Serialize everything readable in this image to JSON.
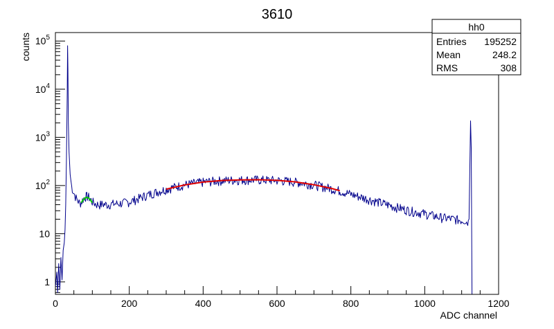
{
  "chart_data": {
    "type": "line",
    "title": "3610",
    "xlabel": "ADC channel",
    "ylabel": "counts",
    "xlim": [
      0,
      1200
    ],
    "ylim": [
      0.55,
      150000
    ],
    "y_scale": "log",
    "grid": false,
    "x_ticks": [
      {
        "value": 0,
        "label": "0"
      },
      {
        "value": 200,
        "label": "200"
      },
      {
        "value": 400,
        "label": "400"
      },
      {
        "value": 600,
        "label": "600"
      },
      {
        "value": 800,
        "label": "800"
      },
      {
        "value": 1000,
        "label": "1000"
      },
      {
        "value": 1200,
        "label": "1200"
      }
    ],
    "y_ticks": [
      {
        "value": 1,
        "base": "1",
        "exp": ""
      },
      {
        "value": 10,
        "base": "10",
        "exp": ""
      },
      {
        "value": 100,
        "base": "10",
        "exp": "2"
      },
      {
        "value": 1000,
        "base": "10",
        "exp": "3"
      },
      {
        "value": 10000,
        "base": "10",
        "exp": "4"
      },
      {
        "value": 100000,
        "base": "10",
        "exp": "5"
      }
    ],
    "series": [
      {
        "color": "#00008b",
        "points": [
          [
            0,
            0.8
          ],
          [
            4,
            1.6
          ],
          [
            6,
            0.6
          ],
          [
            9,
            2.4
          ],
          [
            12,
            0.7
          ],
          [
            15,
            3.2
          ],
          [
            18,
            1.1
          ],
          [
            21,
            4.5
          ],
          [
            24,
            6.5
          ],
          [
            26,
            12
          ],
          [
            28,
            40
          ],
          [
            30,
            400
          ],
          [
            32,
            9000
          ],
          [
            33,
            80000
          ],
          [
            34,
            25000
          ],
          [
            35,
            2000
          ],
          [
            37,
            500
          ],
          [
            40,
            170
          ],
          [
            44,
            95
          ],
          [
            50,
            70
          ],
          [
            56,
            55
          ],
          [
            62,
            47
          ],
          [
            66,
            43
          ],
          [
            70,
            45
          ],
          [
            75,
            52
          ],
          [
            80,
            58
          ],
          [
            85,
            60
          ],
          [
            90,
            58
          ],
          [
            95,
            52
          ],
          [
            100,
            46
          ],
          [
            110,
            41
          ],
          [
            120,
            40
          ],
          [
            130,
            41
          ],
          [
            140,
            40
          ],
          [
            150,
            41
          ],
          [
            160,
            42
          ],
          [
            170,
            42
          ],
          [
            180,
            43
          ],
          [
            200,
            46
          ],
          [
            220,
            52
          ],
          [
            240,
            60
          ],
          [
            260,
            68
          ],
          [
            280,
            76
          ],
          [
            300,
            84
          ],
          [
            320,
            92
          ],
          [
            340,
            100
          ],
          [
            360,
            107
          ],
          [
            380,
            113
          ],
          [
            400,
            118
          ],
          [
            420,
            122
          ],
          [
            440,
            126
          ],
          [
            460,
            128
          ],
          [
            480,
            130
          ],
          [
            500,
            131
          ],
          [
            520,
            132
          ],
          [
            540,
            132
          ],
          [
            560,
            131
          ],
          [
            580,
            130
          ],
          [
            600,
            128
          ],
          [
            620,
            125
          ],
          [
            640,
            121
          ],
          [
            660,
            116
          ],
          [
            680,
            110
          ],
          [
            700,
            104
          ],
          [
            720,
            96
          ],
          [
            740,
            89
          ],
          [
            760,
            82
          ],
          [
            780,
            74
          ],
          [
            800,
            66
          ],
          [
            820,
            60
          ],
          [
            840,
            54
          ],
          [
            860,
            49
          ],
          [
            880,
            44
          ],
          [
            900,
            40
          ],
          [
            920,
            36
          ],
          [
            940,
            33
          ],
          [
            960,
            30
          ],
          [
            980,
            28
          ],
          [
            1000,
            26
          ],
          [
            1020,
            24
          ],
          [
            1040,
            22
          ],
          [
            1060,
            21
          ],
          [
            1080,
            20
          ],
          [
            1100,
            19
          ],
          [
            1110,
            19
          ],
          [
            1115,
            17
          ],
          [
            1118,
            19
          ],
          [
            1120,
            20
          ],
          [
            1124,
            2200
          ],
          [
            1126,
            600
          ],
          [
            1128,
            0.56
          ]
        ]
      },
      {
        "color": "#00c800",
        "points": [
          [
            70,
            44
          ],
          [
            75,
            50
          ],
          [
            80,
            55
          ],
          [
            85,
            57
          ],
          [
            90,
            55
          ],
          [
            95,
            50
          ],
          [
            100,
            44
          ]
        ]
      },
      {
        "color": "#e00000",
        "points": [
          [
            300,
            84
          ],
          [
            350,
            103
          ],
          [
            400,
            118
          ],
          [
            450,
            127
          ],
          [
            500,
            131
          ],
          [
            550,
            132
          ],
          [
            600,
            128
          ],
          [
            650,
            119
          ],
          [
            700,
            104
          ],
          [
            750,
            86
          ],
          [
            770,
            78
          ]
        ]
      }
    ]
  },
  "stats": {
    "title": "hh0",
    "rows": [
      {
        "label": "Entries",
        "value": "195252"
      },
      {
        "label": "Mean",
        "value": "248.2"
      },
      {
        "label": "RMS",
        "value": "308"
      }
    ]
  }
}
